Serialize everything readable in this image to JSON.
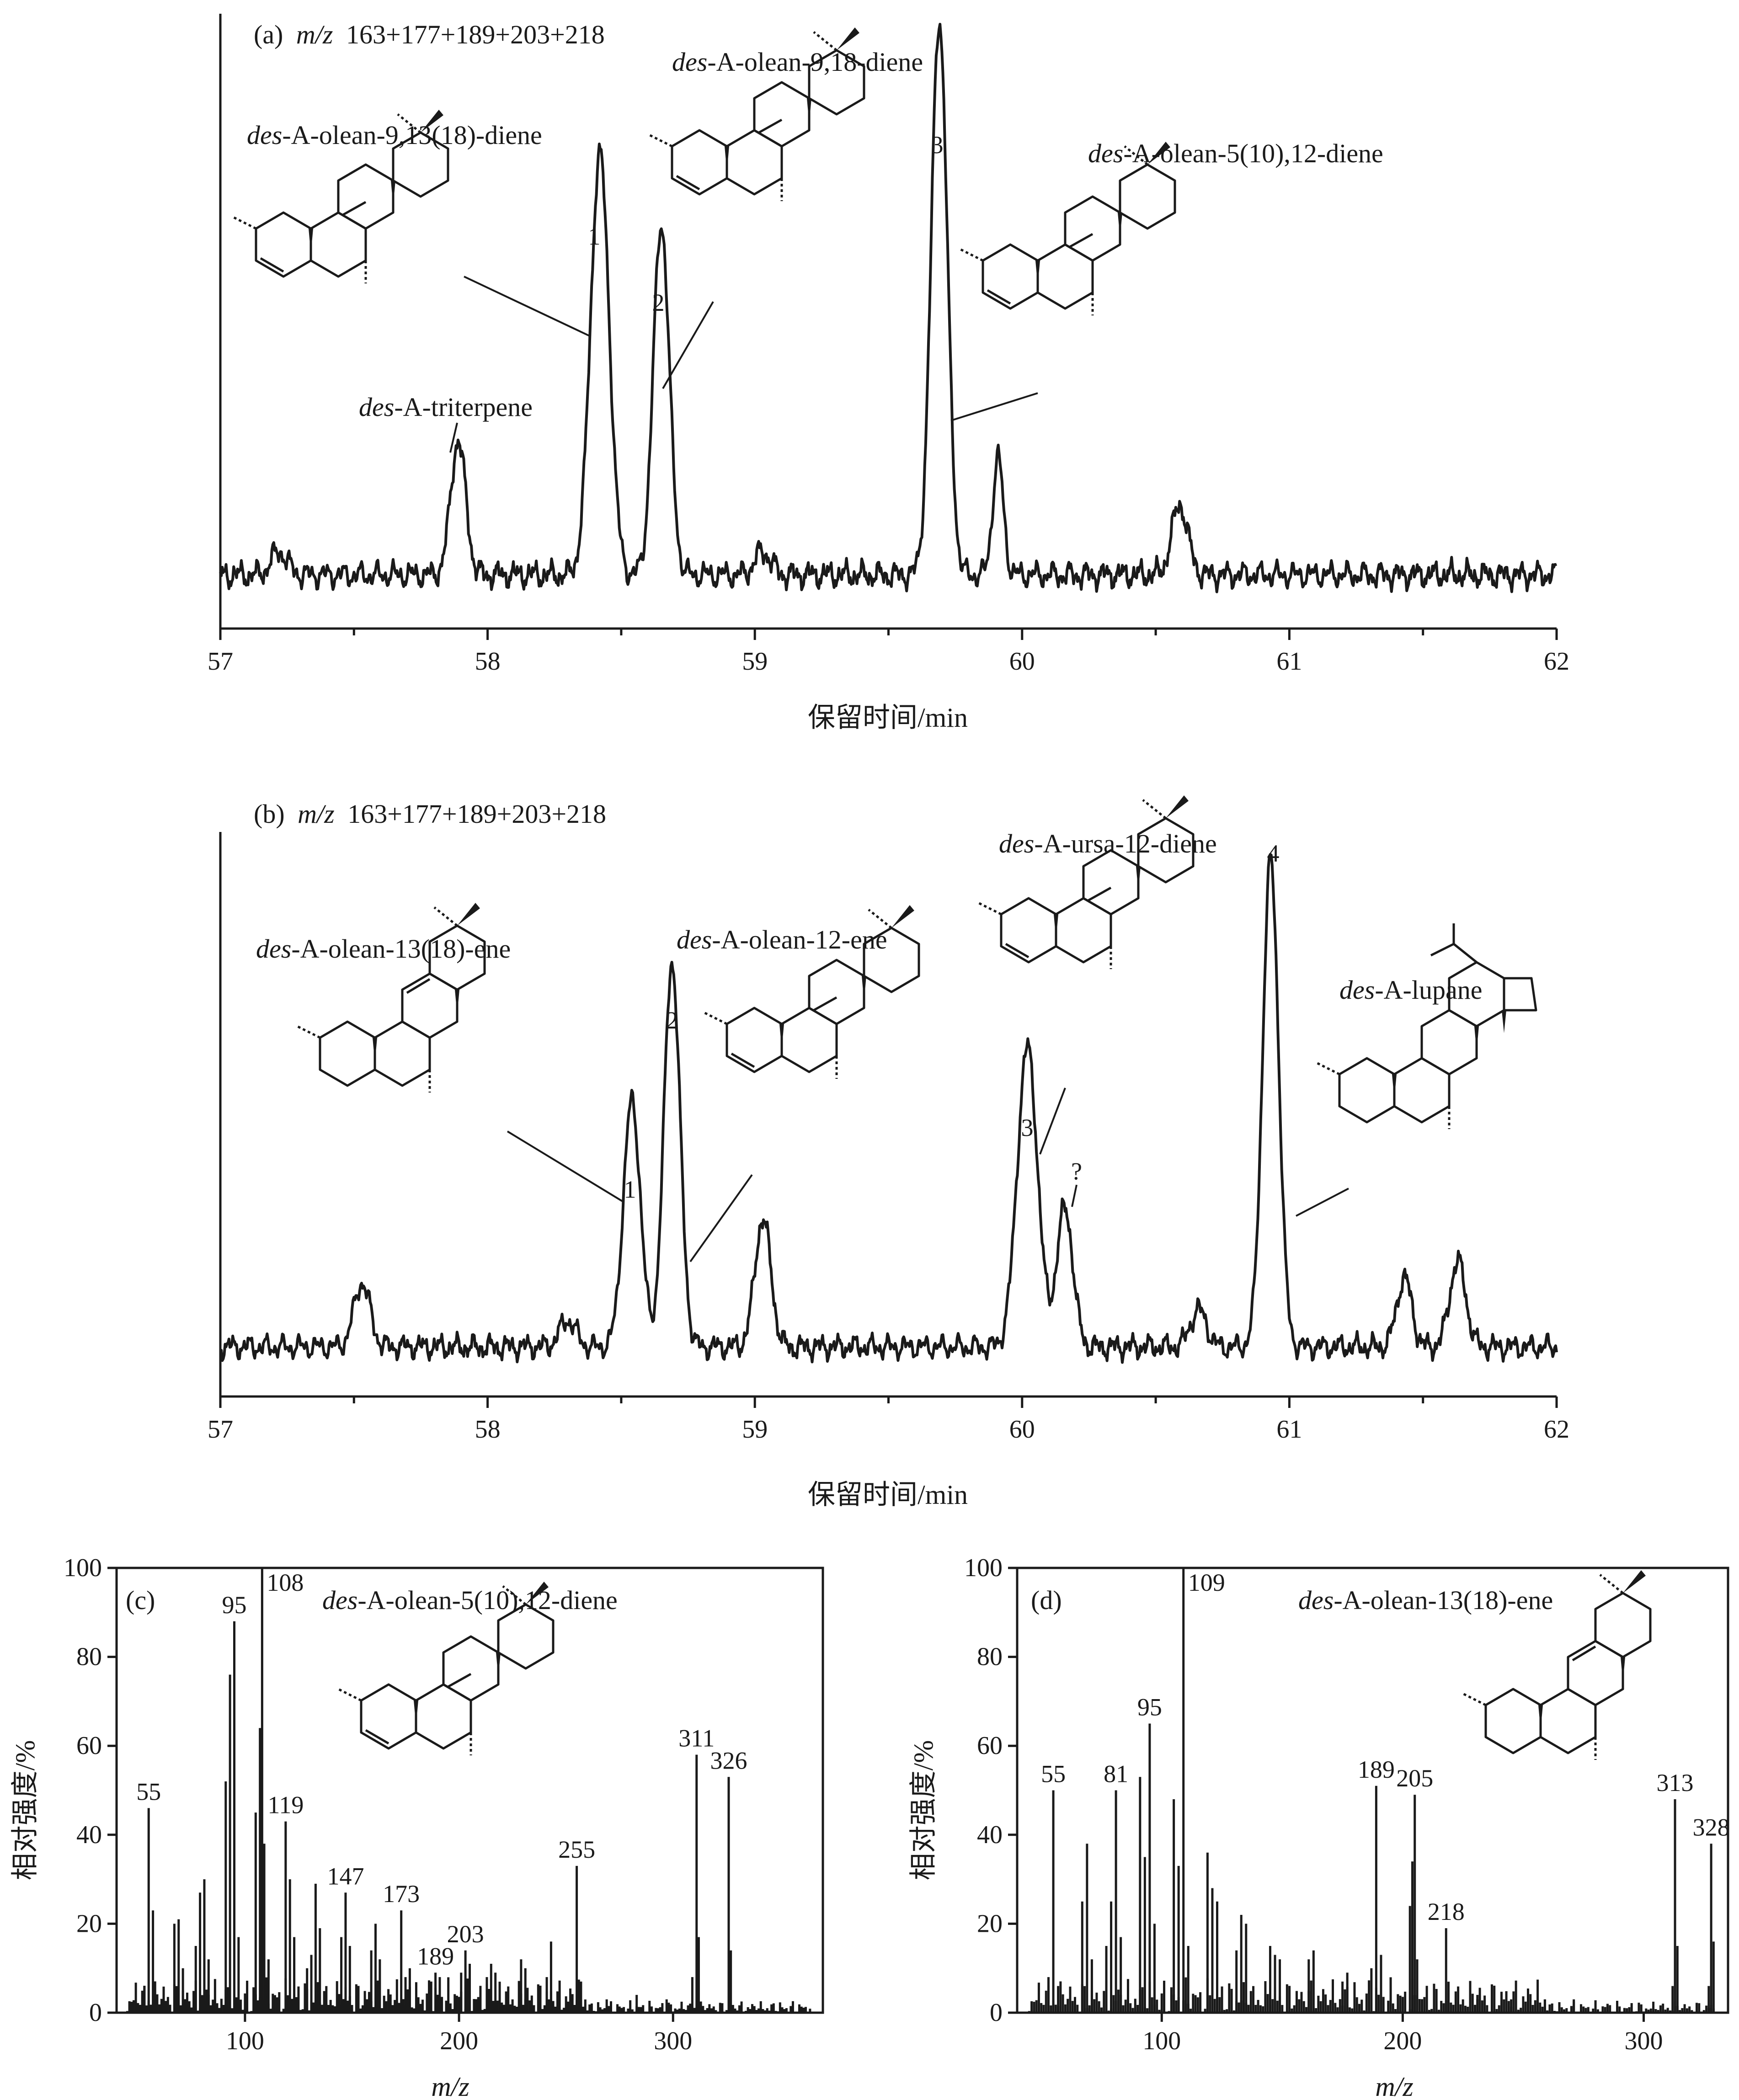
{
  "chart_data": [
    {
      "type": "line",
      "panel_label": "(a)",
      "title_prefix": "m/z",
      "title": "163+177+189+203+218",
      "xlabel": "保留时间/min",
      "ylabel": "",
      "xlim": [
        57,
        62
      ],
      "xticks": [
        "57",
        "58",
        "59",
        "60",
        "61",
        "62"
      ],
      "grid": false,
      "peaks": [
        {
          "label": "1",
          "x": 58.42,
          "compound": "des-A-olean-9,13(18)-diene"
        },
        {
          "label": "2",
          "x": 58.65,
          "compound": "des-A-olean-9,18-diene"
        },
        {
          "label": "3",
          "x": 59.69,
          "compound": "des-A-olean-5(10),12-diene"
        },
        {
          "label": "",
          "x": 57.89,
          "compound": "des-A-triterpene"
        }
      ],
      "annotations": [
        {
          "prefix": "des",
          "rest": "-A-olean-9,13(18)-diene"
        },
        {
          "prefix": "des",
          "rest": "-A-olean-9,18-diene"
        },
        {
          "prefix": "des",
          "rest": "-A-olean-5(10),12-diene"
        },
        {
          "prefix": "des",
          "rest": "-A-triterpene"
        }
      ]
    },
    {
      "type": "line",
      "panel_label": "(b)",
      "title_prefix": "m/z",
      "title": "163+177+189+203+218",
      "xlabel": "保留时间/min",
      "ylabel": "",
      "xlim": [
        57,
        62
      ],
      "xticks": [
        "57",
        "58",
        "59",
        "60",
        "61",
        "62"
      ],
      "grid": false,
      "peaks": [
        {
          "label": "1",
          "x": 58.54,
          "compound": "des-A-olean-13(18)-ene"
        },
        {
          "label": "2",
          "x": 58.69,
          "compound": "des-A-olean-12-ene"
        },
        {
          "label": "3",
          "x": 60.02,
          "compound": "des-A-ursa-12-diene"
        },
        {
          "label": "?",
          "x": 60.16,
          "compound": ""
        },
        {
          "label": "4",
          "x": 60.93,
          "compound": "des-A-lupane"
        }
      ],
      "annotations": [
        {
          "prefix": "des",
          "rest": "-A-olean-13(18)-ene"
        },
        {
          "prefix": "des",
          "rest": "-A-olean-12-ene"
        },
        {
          "prefix": "des",
          "rest": "-A-ursa-12-diene"
        },
        {
          "prefix": "des",
          "rest": "-A-lupane"
        }
      ]
    },
    {
      "type": "bar",
      "panel_label": "(c)",
      "compound_prefix": "des",
      "compound_rest": "-A-olean-5(10),12-diene",
      "xlabel": "m/z",
      "ylabel": "相对强度/%",
      "xlim": [
        40,
        370
      ],
      "ylim": [
        0,
        100
      ],
      "xticks": [
        "100",
        "200",
        "300"
      ],
      "yticks": [
        "0",
        "20",
        "40",
        "60",
        "80",
        "100"
      ],
      "labeled_peaks": [
        {
          "mz": 55,
          "intensity": 46,
          "label": "55"
        },
        {
          "mz": 95,
          "intensity": 88,
          "label": "95"
        },
        {
          "mz": 108,
          "intensity": 100,
          "label": "108"
        },
        {
          "mz": 119,
          "intensity": 43,
          "label": "119"
        },
        {
          "mz": 147,
          "intensity": 27,
          "label": "147"
        },
        {
          "mz": 173,
          "intensity": 23,
          "label": "173"
        },
        {
          "mz": 189,
          "intensity": 9,
          "label": "189"
        },
        {
          "mz": 203,
          "intensity": 14,
          "label": "203"
        },
        {
          "mz": 255,
          "intensity": 33,
          "label": "255"
        },
        {
          "mz": 311,
          "intensity": 58,
          "label": "311"
        },
        {
          "mz": 326,
          "intensity": 53,
          "label": "326"
        }
      ],
      "minor_peaks": [
        [
          53,
          6
        ],
        [
          57,
          23
        ],
        [
          67,
          20
        ],
        [
          69,
          21
        ],
        [
          71,
          10
        ],
        [
          77,
          15
        ],
        [
          79,
          27
        ],
        [
          81,
          30
        ],
        [
          83,
          12
        ],
        [
          91,
          52
        ],
        [
          93,
          76
        ],
        [
          97,
          17
        ],
        [
          105,
          45
        ],
        [
          107,
          64
        ],
        [
          109,
          38
        ],
        [
          111,
          12
        ],
        [
          121,
          30
        ],
        [
          123,
          17
        ],
        [
          129,
          10
        ],
        [
          131,
          13
        ],
        [
          133,
          29
        ],
        [
          135,
          19
        ],
        [
          145,
          17
        ],
        [
          149,
          15
        ],
        [
          159,
          14
        ],
        [
          161,
          20
        ],
        [
          163,
          12
        ],
        [
          175,
          8
        ],
        [
          177,
          10
        ],
        [
          187,
          7
        ],
        [
          191,
          8
        ],
        [
          201,
          9
        ],
        [
          205,
          11
        ],
        [
          213,
          8
        ],
        [
          215,
          11
        ],
        [
          217,
          9
        ],
        [
          229,
          12
        ],
        [
          231,
          10
        ],
        [
          241,
          8
        ],
        [
          243,
          16
        ],
        [
          257,
          7
        ],
        [
          269,
          3
        ],
        [
          283,
          4
        ],
        [
          297,
          3
        ],
        [
          309,
          8
        ],
        [
          312,
          17
        ],
        [
          327,
          14
        ]
      ]
    },
    {
      "type": "bar",
      "panel_label": "(d)",
      "compound_prefix": "des",
      "compound_rest": "-A-olean-13(18)-ene",
      "xlabel": "m/z",
      "ylabel": "相对强度/%",
      "xlim": [
        40,
        335
      ],
      "ylim": [
        0,
        100
      ],
      "xticks": [
        "100",
        "200",
        "300"
      ],
      "yticks": [
        "0",
        "20",
        "40",
        "60",
        "80",
        "100"
      ],
      "labeled_peaks": [
        {
          "mz": 55,
          "intensity": 50,
          "label": "55"
        },
        {
          "mz": 81,
          "intensity": 50,
          "label": "81"
        },
        {
          "mz": 95,
          "intensity": 65,
          "label": "95"
        },
        {
          "mz": 109,
          "intensity": 100,
          "label": "109"
        },
        {
          "mz": 189,
          "intensity": 51,
          "label": "189"
        },
        {
          "mz": 205,
          "intensity": 49,
          "label": "205"
        },
        {
          "mz": 218,
          "intensity": 19,
          "label": "218"
        },
        {
          "mz": 313,
          "intensity": 48,
          "label": "313"
        },
        {
          "mz": 328,
          "intensity": 38,
          "label": "328"
        }
      ],
      "minor_peaks": [
        [
          53,
          8
        ],
        [
          57,
          6
        ],
        [
          67,
          25
        ],
        [
          69,
          38
        ],
        [
          71,
          12
        ],
        [
          77,
          15
        ],
        [
          79,
          25
        ],
        [
          83,
          17
        ],
        [
          91,
          53
        ],
        [
          93,
          35
        ],
        [
          97,
          20
        ],
        [
          105,
          48
        ],
        [
          107,
          33
        ],
        [
          111,
          15
        ],
        [
          119,
          36
        ],
        [
          121,
          28
        ],
        [
          123,
          25
        ],
        [
          131,
          14
        ],
        [
          133,
          22
        ],
        [
          135,
          20
        ],
        [
          145,
          15
        ],
        [
          147,
          13
        ],
        [
          149,
          12
        ],
        [
          161,
          12
        ],
        [
          163,
          14
        ],
        [
          175,
          7
        ],
        [
          177,
          9
        ],
        [
          187,
          10
        ],
        [
          191,
          13
        ],
        [
          203,
          24
        ],
        [
          204,
          34
        ],
        [
          206,
          12
        ],
        [
          219,
          5
        ],
        [
          231,
          4
        ],
        [
          245,
          3
        ],
        [
          259,
          3
        ],
        [
          271,
          3
        ],
        [
          285,
          2
        ],
        [
          298,
          2
        ],
        [
          312,
          6
        ],
        [
          314,
          15
        ],
        [
          327,
          6
        ],
        [
          329,
          16
        ]
      ]
    }
  ]
}
